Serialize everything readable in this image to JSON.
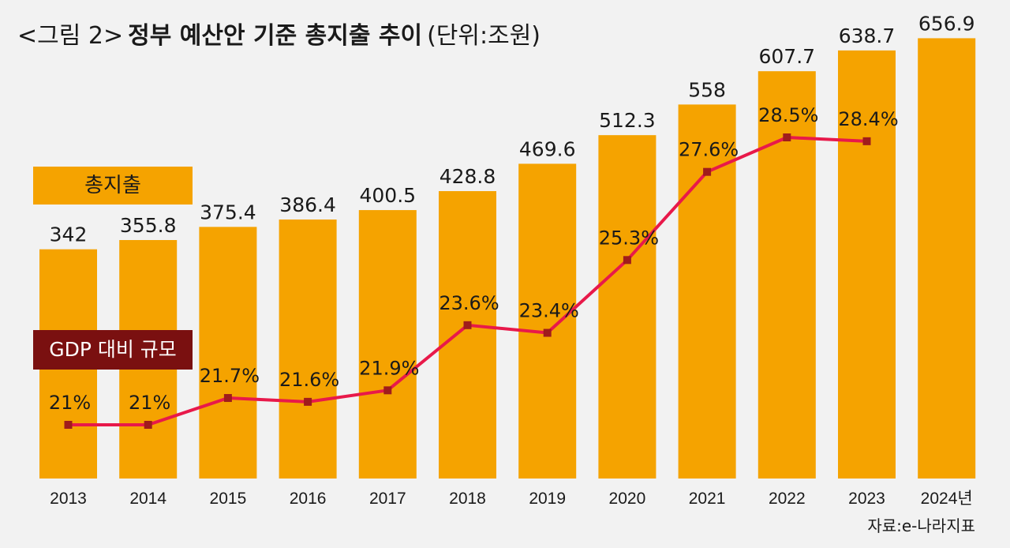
{
  "title": {
    "prefix": "<그림 2>",
    "main": "정부 예산안 기준 총지출 추이",
    "unit": "(단위:조원)"
  },
  "source": "자료:e-나라지표",
  "colors": {
    "bar": "#f5a300",
    "line": "#e8194a",
    "marker": "#a01c1c",
    "legend_line_bg": "#7a1010",
    "background": "#f2f2f2"
  },
  "chart_data": {
    "type": "bar+line",
    "categories": [
      "2013",
      "2014",
      "2015",
      "2016",
      "2017",
      "2018",
      "2019",
      "2020",
      "2021",
      "2022",
      "2023",
      "2024년"
    ],
    "series": [
      {
        "name": "총지출",
        "type": "bar",
        "values": [
          342,
          355.8,
          375.4,
          386.4,
          400.5,
          428.8,
          469.6,
          512.3,
          558,
          607.7,
          638.7,
          656.9
        ],
        "labels": [
          "342",
          "355.8",
          "375.4",
          "386.4",
          "400.5",
          "428.8",
          "469.6",
          "512.3",
          "558",
          "607.7",
          "638.7",
          "656.9"
        ]
      },
      {
        "name": "GDP 대비 규모",
        "type": "line",
        "values": [
          21,
          21,
          21.7,
          21.6,
          21.9,
          23.6,
          23.4,
          25.3,
          27.6,
          28.5,
          28.4,
          null
        ],
        "labels": [
          "21%",
          "21%",
          "21.7%",
          "21.6%",
          "21.9%",
          "23.6%",
          "23.4%",
          "25.3%",
          "27.6%",
          "28.5%",
          "28.4%",
          ""
        ]
      }
    ],
    "bar_axis_range": [
      0,
      700
    ],
    "line_axis_range": [
      16,
      30
    ],
    "grid": false,
    "legend_placement": "left"
  }
}
